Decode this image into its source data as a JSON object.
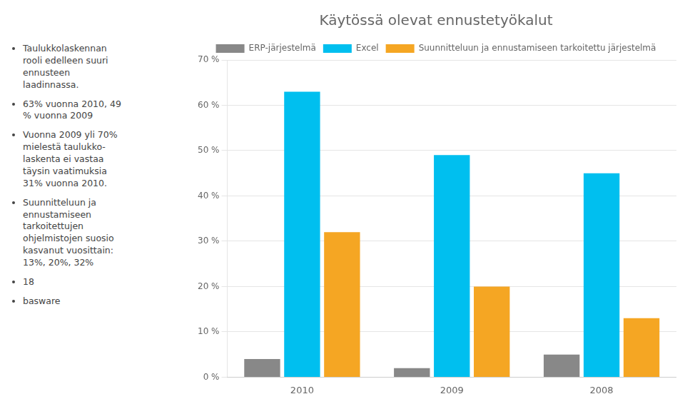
{
  "chart_data": {
    "type": "bar",
    "title": "Käytössä olevat ennustetyökalut",
    "categories": [
      "2010",
      "2009",
      "2008"
    ],
    "series": [
      {
        "name": "ERP-järjestelmä",
        "color": "#888888",
        "values": [
          4,
          2,
          5
        ]
      },
      {
        "name": "Excel",
        "color": "#00BFEF",
        "values": [
          63,
          49,
          45
        ]
      },
      {
        "name": "Suunnitteluun ja ennustamiseen tarkoitettu järjestelmä",
        "color": "#F5A623",
        "values": [
          32,
          20,
          13
        ]
      }
    ],
    "ylim": [
      0,
      70
    ],
    "yticks": [
      {
        "value": 0,
        "label": "0 %"
      },
      {
        "value": 10,
        "label": "10 %"
      },
      {
        "value": 20,
        "label": "20 %"
      },
      {
        "value": 30,
        "label": "30 %"
      },
      {
        "value": 40,
        "label": "40 %"
      },
      {
        "value": 50,
        "label": "50 %"
      },
      {
        "value": 60,
        "label": "60 %"
      },
      {
        "value": 70,
        "label": "70 %"
      }
    ],
    "grid": true,
    "legend": "top",
    "annotations": [
      "Taulukkolaskennan\nrooli edelleen suuri\nennusteen\nlaadinnassa.",
      "63% vuonna 2010, 49\n% vuonna 2009",
      "Vuonna 2009 yli 70%\nmielestä taulukko-\nlaskenta ei vastaa\ntäysin vaatimuksia\n31% vuonna 2010.",
      "Suunnitteluun ja\nennustamiseen\ntarkoitettujen\nohjelmistojen suosio\nkasvanut vuosittain:\n13%, 20%, 32%",
      "18",
      "basware"
    ]
  }
}
